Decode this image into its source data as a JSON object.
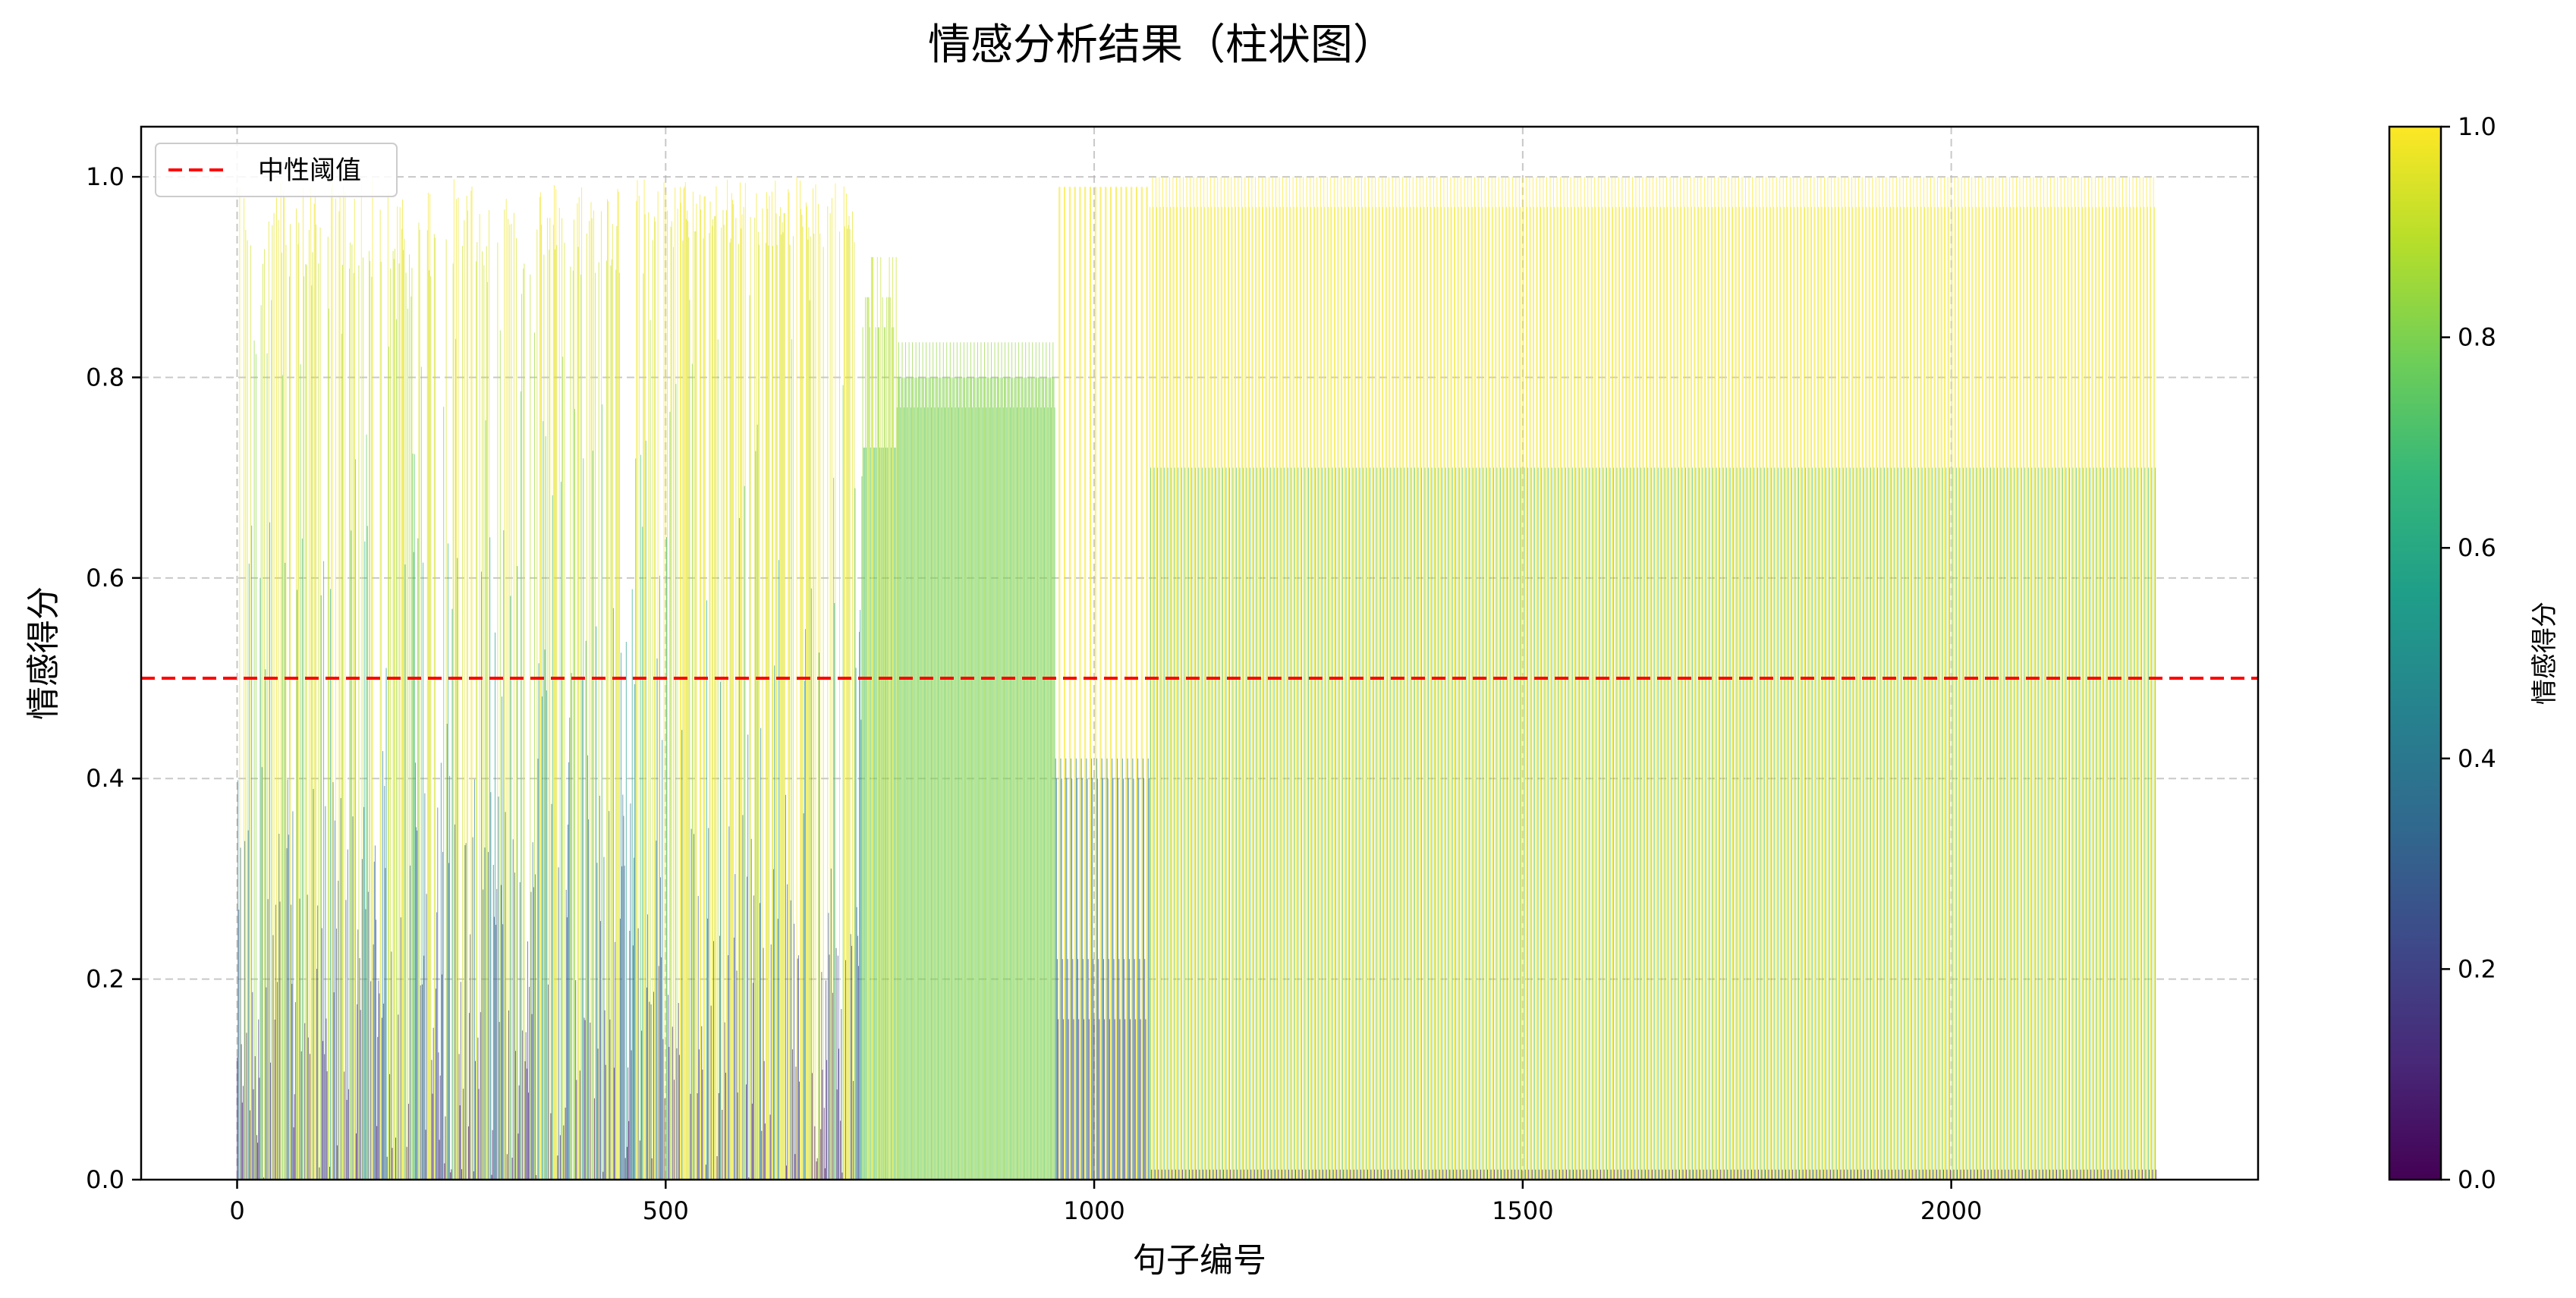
{
  "chart_data": {
    "type": "bar",
    "title": "情感分析结果（柱状图）",
    "xlabel": "句子编号",
    "ylabel": "情感得分",
    "xlim": [
      -112,
      2358
    ],
    "ylim": [
      0,
      1.05
    ],
    "xticks": [
      0,
      500,
      1000,
      1500,
      2000
    ],
    "yticks": [
      0.0,
      0.2,
      0.4,
      0.6,
      0.8,
      1.0
    ],
    "xtick_labels": [
      "0",
      "500",
      "1000",
      "1500",
      "2000"
    ],
    "ytick_labels": [
      "0.0",
      "0.2",
      "0.4",
      "0.6",
      "0.8",
      "1.0"
    ],
    "grid": true,
    "n_bars": 2240,
    "colormap": "viridis",
    "bar_color_by": "value",
    "segments": [
      {
        "range": [
          0,
          730
        ],
        "pattern": "mixed",
        "description_values": [
          1.0,
          0.97,
          0.9,
          0.6,
          0.4,
          0.24,
          0.1,
          0.02
        ]
      },
      {
        "range": [
          500,
          730
        ],
        "pattern": "mixed-high",
        "description_values": [
          1.0,
          0.99,
          0.95,
          0.5,
          0.3,
          0.05
        ]
      },
      {
        "range": [
          730,
          770
        ],
        "pattern": "repeat",
        "description_values": [
          0.92,
          0.73
        ]
      },
      {
        "range": [
          770,
          955
        ],
        "pattern": "repeat",
        "description_values": [
          0.835,
          0.8,
          0.77
        ]
      },
      {
        "range": [
          955,
          1065
        ],
        "pattern": "repeat",
        "description_values": [
          0.99,
          0.42,
          0.4,
          0.22,
          0.16
        ]
      },
      {
        "range": [
          1065,
          2240
        ],
        "pattern": "repeat",
        "description_values": [
          1.0,
          0.97,
          0.71,
          0.01
        ]
      }
    ],
    "reference_line": {
      "y": 0.5,
      "label": "中性阈值",
      "color": "#ff0000",
      "style": "dashed"
    },
    "legend": {
      "placement": "upper-left",
      "entries": [
        "中性阈值"
      ]
    },
    "colorbar": {
      "label": "情感得分",
      "range": [
        0.0,
        1.0
      ],
      "ticks": [
        0.0,
        0.2,
        0.4,
        0.6,
        0.8,
        1.0
      ],
      "tick_labels": [
        "0.0",
        "0.2",
        "0.4",
        "0.6",
        "0.8",
        "1.0"
      ],
      "stops": [
        "#440154",
        "#482878",
        "#3e4989",
        "#31688e",
        "#26828e",
        "#1f9e89",
        "#35b779",
        "#6ece58",
        "#b5de2b",
        "#fde725"
      ]
    }
  }
}
